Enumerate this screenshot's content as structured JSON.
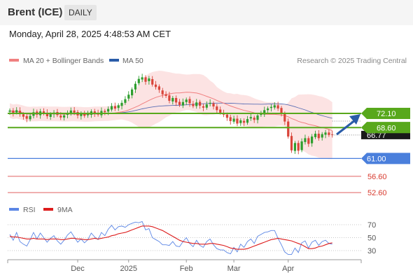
{
  "header": {
    "instrument": "Brent (ICE)",
    "timeframe": "DAILY",
    "datetime": "Monday, April 28, 2025 4:48:53 AM CET"
  },
  "colors": {
    "bull": "#2e9e2e",
    "bear": "#d9453a",
    "ma20": "#f08080",
    "bands": "#fcdede",
    "ma50": "#5b6fb5",
    "resistance": "#58a81c",
    "support": "#4a7fdc",
    "target": "#e06060",
    "arrow": "#2a5ca8",
    "rsi": "#5b86e5",
    "rsi_ma": "#dd1d1d"
  },
  "chart_data": [
    {
      "type": "candlestick",
      "x_labels": [
        "Dec",
        "2025",
        "Feb",
        "Mar",
        "Apr"
      ],
      "legend": [
        {
          "label": "MA 20 + Bollinger Bands",
          "color": "#f08080"
        },
        {
          "label": "MA 50",
          "color": "#2a5ca8"
        }
      ],
      "source": "Research © 2025 Trading Central",
      "last_price": "66.77",
      "levels": [
        {
          "label": "72.10",
          "value": 72.1,
          "kind": "resistance"
        },
        {
          "label": "68.60",
          "value": 68.6,
          "kind": "resistance"
        },
        {
          "label": "61.00",
          "value": 61.0,
          "kind": "pivot"
        },
        {
          "label": "56.60",
          "value": 56.6,
          "kind": "target"
        },
        {
          "label": "52.60",
          "value": 52.6,
          "kind": "target"
        }
      ],
      "series": [
        {
          "name": "MA 20 + Bollinger Bands"
        },
        {
          "name": "MA 50"
        }
      ],
      "close": [
        72.8,
        72.2,
        72.9,
        71.9,
        71.3,
        70.8,
        71.5,
        72.4,
        71.8,
        72.6,
        72.1,
        71.4,
        71.9,
        72.3,
        71.7,
        71.1,
        71.6,
        72.2,
        72.8,
        72.3,
        71.6,
        72.0,
        71.5,
        71.9,
        72.6,
        72.1,
        71.8,
        72.7,
        72.4,
        73.2,
        73.9,
        73.3,
        74.1,
        74.7,
        75.6,
        76.7,
        78.0,
        79.4,
        80.6,
        81.0,
        79.9,
        80.7,
        79.2,
        78.6,
        77.9,
        76.8,
        76.4,
        75.2,
        75.9,
        74.8,
        74.2,
        74.9,
        75.5,
        74.6,
        73.9,
        74.8,
        74.0,
        73.5,
        74.3,
        74.7,
        73.8,
        72.9,
        72.3,
        71.8,
        71.0,
        70.2,
        70.8,
        69.6,
        70.4,
        69.8,
        70.7,
        71.2,
        70.5,
        71.6,
        72.0,
        72.9,
        73.3,
        73.7,
        74.1,
        73.3,
        72.1,
        70.1,
        66.4,
        63.0,
        64.8,
        62.9,
        65.2,
        66.0,
        64.6,
        66.4,
        67.1,
        66.0,
        67.0,
        67.4,
        66.8,
        66.77
      ],
      "rsi": {
        "legend": [
          {
            "label": "RSI",
            "color": "#5b86e5"
          },
          {
            "label": "9MA",
            "color": "#dd1d1d"
          }
        ],
        "ticks": [
          "70",
          "50",
          "30"
        ],
        "rsi_values": [
          55,
          46,
          58,
          44,
          40,
          37,
          47,
          58,
          48,
          57,
          50,
          43,
          49,
          53,
          45,
          40,
          46,
          54,
          59,
          51,
          43,
          48,
          42,
          47,
          57,
          51,
          47,
          58,
          53,
          63,
          69,
          62,
          67,
          68,
          66,
          70,
          72,
          74,
          73,
          75,
          62,
          64,
          50,
          47,
          44,
          39,
          39,
          38,
          44,
          37,
          36,
          44,
          50,
          41,
          36,
          46,
          38,
          35,
          44,
          48,
          39,
          33,
          31,
          31,
          27,
          25,
          35,
          28,
          40,
          35,
          44,
          48,
          41,
          52,
          55,
          58,
          59,
          61,
          61,
          49,
          39,
          28,
          24,
          24,
          34,
          27,
          42,
          45,
          34,
          43,
          46,
          38,
          44,
          46,
          41,
          40
        ],
        "rsi_ma_values": [
          52,
          51,
          51,
          50,
          49,
          48,
          48,
          49,
          48,
          48,
          48,
          47,
          48,
          48,
          48,
          47,
          47,
          48,
          49,
          49,
          48,
          48,
          47,
          47,
          48,
          49,
          48,
          49,
          50,
          51,
          53,
          54,
          56,
          57,
          58,
          60,
          62,
          64,
          66,
          68,
          68,
          68,
          67,
          65,
          63,
          61,
          58,
          55,
          52,
          49,
          46,
          44,
          43,
          42,
          41,
          41,
          40,
          40,
          40,
          41,
          41,
          40,
          39,
          38,
          36,
          34,
          33,
          32,
          32,
          32,
          33,
          35,
          37,
          39,
          41,
          43,
          45,
          47,
          48,
          49,
          48,
          47,
          46,
          45,
          43,
          41,
          39,
          36,
          33,
          33,
          34,
          36,
          37,
          39,
          41,
          42
        ]
      }
    }
  ]
}
